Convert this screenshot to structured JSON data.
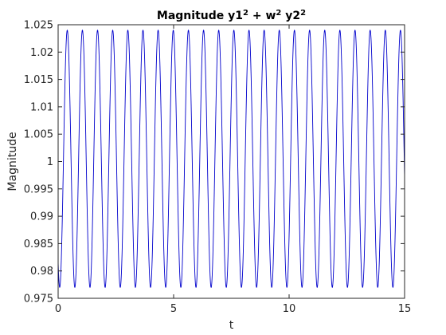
{
  "chart_data": {
    "type": "line",
    "title": {
      "parts": [
        {
          "text": "Magnitude y1",
          "sup": false
        },
        {
          "text": "2",
          "sup": true
        },
        {
          "text": " + w",
          "sup": false
        },
        {
          "text": "2",
          "sup": true
        },
        {
          "text": " y2",
          "sup": false
        },
        {
          "text": "2",
          "sup": true
        }
      ]
    },
    "xlabel": "t",
    "ylabel": "Magnitude",
    "xlim": [
      0,
      15
    ],
    "ylim": [
      0.975,
      1.025
    ],
    "xticks": [
      0,
      5,
      10,
      15
    ],
    "xtick_labels": [
      "0",
      "5",
      "10",
      "15"
    ],
    "yticks": [
      0.975,
      0.98,
      0.985,
      0.99,
      0.995,
      1,
      1.005,
      1.01,
      1.015,
      1.02,
      1.025
    ],
    "ytick_labels": [
      "0.975",
      "0.98",
      "0.985",
      "0.99",
      "0.995",
      "1",
      "1.005",
      "1.01",
      "1.015",
      "1.02",
      "1.025"
    ],
    "grid": false,
    "legend": "none",
    "series": [
      {
        "color": "#0000cc",
        "signal": {
          "form": "offset + amplitude*cos(2*pi*frequency*t + phase)",
          "offset": 1.0005,
          "amplitude": 0.0235,
          "frequency": 1.525,
          "phase": 2.5,
          "t_range": [
            0,
            15
          ]
        }
      }
    ]
  }
}
